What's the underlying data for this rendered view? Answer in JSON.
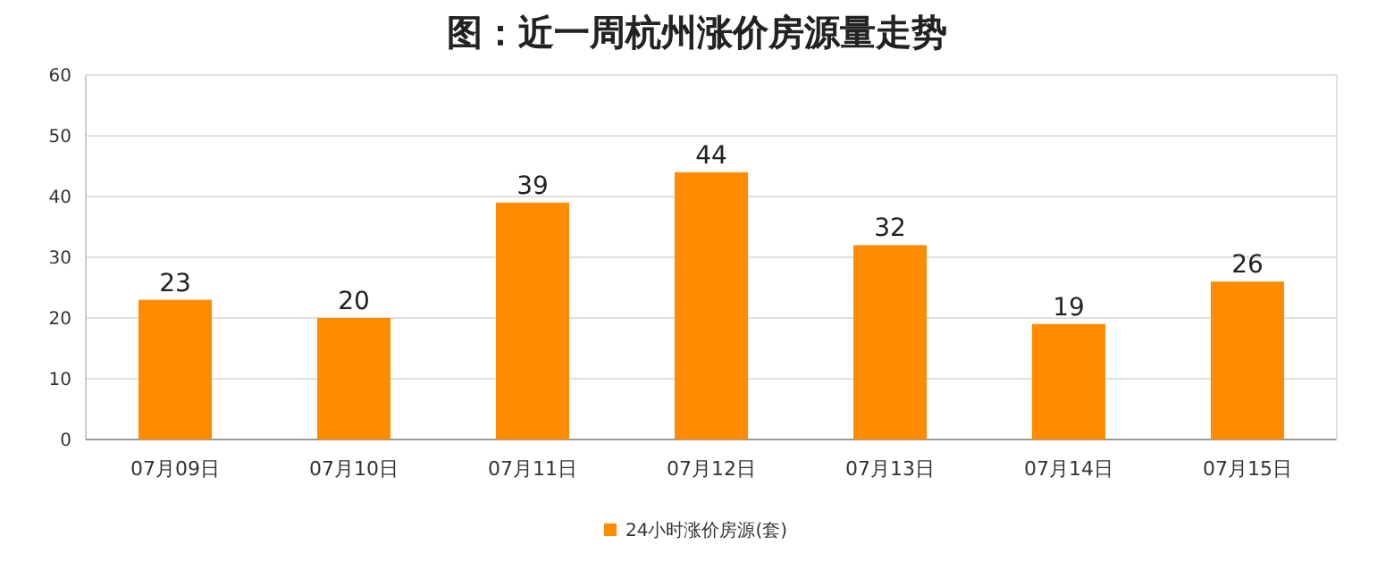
{
  "chart_data": {
    "type": "bar",
    "title": "图：近一周杭州涨价房源量走势",
    "categories": [
      "07月09日",
      "07月10日",
      "07月11日",
      "07月12日",
      "07月13日",
      "07月14日",
      "07月15日"
    ],
    "series": [
      {
        "name": "24小时涨价房源(套)",
        "color": "#ff8c00",
        "values": [
          23,
          20,
          39,
          44,
          32,
          19,
          26
        ]
      }
    ],
    "ylim": [
      0,
      60
    ],
    "yticks": [
      0,
      10,
      20,
      30,
      40,
      50,
      60
    ],
    "grid": "y",
    "legend": "bottom",
    "data_labels": true
  }
}
